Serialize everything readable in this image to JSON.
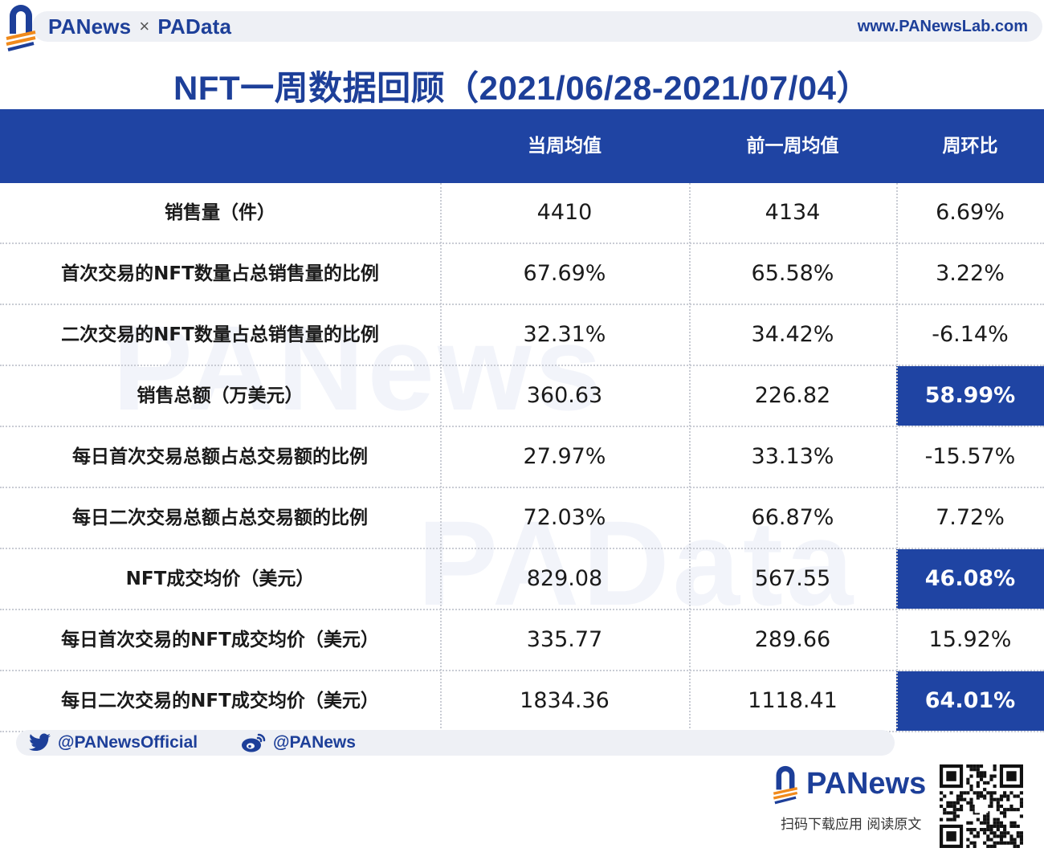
{
  "header": {
    "brand_left": "PANews",
    "brand_sep": "×",
    "brand_right": "PAData",
    "site_url": "www.PANewsLab.com"
  },
  "title": "NFT一周数据回顾（2021/06/28-2021/07/04）",
  "table": {
    "columns": [
      "",
      "当周均值",
      "前一周均值",
      "周环比"
    ],
    "rows": [
      {
        "label": "销售量（件）",
        "current": "4410",
        "previous": "4134",
        "change": "6.69%",
        "highlight": false
      },
      {
        "label": "首次交易的NFT数量占总销售量的比例",
        "current": "67.69%",
        "previous": "65.58%",
        "change": "3.22%",
        "highlight": false
      },
      {
        "label": "二次交易的NFT数量占总销售量的比例",
        "current": "32.31%",
        "previous": "34.42%",
        "change": "-6.14%",
        "highlight": false
      },
      {
        "label": "销售总额（万美元）",
        "current": "360.63",
        "previous": "226.82",
        "change": "58.99%",
        "highlight": true
      },
      {
        "label": "每日首次交易总额占总交易额的比例",
        "current": "27.97%",
        "previous": "33.13%",
        "change": "-15.57%",
        "highlight": false
      },
      {
        "label": "每日二次交易总额占总交易额的比例",
        "current": "72.03%",
        "previous": "66.87%",
        "change": "7.72%",
        "highlight": false
      },
      {
        "label": "NFT成交均价（美元）",
        "current": "829.08",
        "previous": "567.55",
        "change": "46.08%",
        "highlight": true
      },
      {
        "label": "每日首次交易的NFT成交均价（美元）",
        "current": "335.77",
        "previous": "289.66",
        "change": "15.92%",
        "highlight": false
      },
      {
        "label": "每日二次交易的NFT成交均价（美元）",
        "current": "1834.36",
        "previous": "1118.41",
        "change": "64.01%",
        "highlight": true
      }
    ]
  },
  "watermarks": [
    "PANews",
    "PAData"
  ],
  "social": {
    "twitter_icon": "twitter-bird-icon",
    "twitter_handle": "@PANewsOfficial",
    "weibo_icon": "weibo-icon",
    "weibo_handle": "@PANews"
  },
  "footer": {
    "brand": "PANews",
    "caption": "扫码下载应用  阅读原文",
    "qr_icon": "qr-code-icon"
  },
  "colors": {
    "primary": "#1f44a3",
    "accent": "#f08a1c",
    "bar_bg": "#eef0f5"
  }
}
